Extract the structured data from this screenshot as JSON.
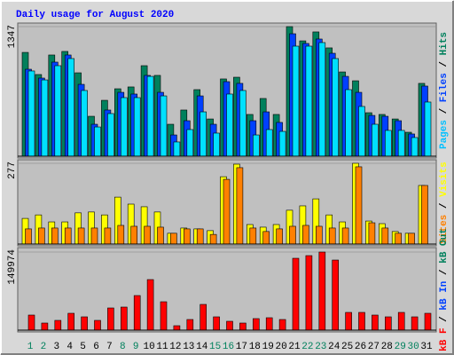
{
  "chart_data": [
    {
      "type": "bar",
      "title": "Daily usage for August 2020",
      "legend_separator": " / ",
      "ylim": [
        0,
        1347
      ],
      "yticks": [
        1347
      ],
      "grid": true,
      "series": [
        {
          "name": "Pages",
          "color": "#00e0ff",
          "label_color": "#00c0ff",
          "values": [
            886,
            793,
            941,
            1015,
            683,
            304,
            443,
            609,
            609,
            830,
            627,
            148,
            277,
            461,
            240,
            646,
            683,
            221,
            277,
            258,
            1144,
            1144,
            1181,
            1015,
            692,
            517,
            332,
            268,
            268,
            194,
            563
          ]
        },
        {
          "name": "Files",
          "color": "#0040ff",
          "label_color": "#0040ff",
          "values": [
            904,
            812,
            978,
            1052,
            747,
            332,
            480,
            664,
            646,
            840,
            664,
            221,
            369,
            627,
            332,
            775,
            757,
            369,
            461,
            351,
            1273,
            1172,
            1218,
            1070,
            830,
            664,
            424,
            415,
            369,
            231,
            729
          ]
        },
        {
          "name": "Hits",
          "color": "#00805c",
          "label_color": "#00805c",
          "values": [
            1079,
            849,
            1052,
            1089,
            867,
            415,
            581,
            701,
            720,
            941,
            840,
            332,
            480,
            692,
            387,
            803,
            821,
            434,
            600,
            434,
            1347,
            1199,
            1292,
            1126,
            876,
            784,
            452,
            434,
            387,
            249,
            757
          ]
        }
      ]
    },
    {
      "type": "bar",
      "legend_separator": " / ",
      "ylim": [
        0,
        277
      ],
      "yticks": [
        277
      ],
      "grid": true,
      "series": [
        {
          "name": "Sites",
          "color": "#ff8000",
          "label_color": "#ff8000",
          "values": [
            52,
            55,
            55,
            55,
            55,
            55,
            55,
            64,
            61,
            61,
            58,
            37,
            52,
            52,
            33,
            222,
            262,
            55,
            43,
            52,
            61,
            64,
            61,
            55,
            55,
            265,
            73,
            55,
            37,
            37,
            201
          ]
        },
        {
          "name": "Visits",
          "color": "#ffff00",
          "label_color": "#ffff00",
          "values": [
            88,
            100,
            76,
            76,
            107,
            110,
            100,
            161,
            137,
            128,
            110,
            37,
            55,
            52,
            46,
            231,
            274,
            67,
            58,
            67,
            116,
            131,
            155,
            100,
            76,
            277,
            79,
            70,
            43,
            37,
            201
          ]
        }
      ]
    },
    {
      "type": "bar",
      "legend_separator": " / ",
      "ylim": [
        0,
        149974
      ],
      "yticks": [
        149974
      ],
      "grid": true,
      "categories": [
        "1",
        "2",
        "3",
        "4",
        "5",
        "6",
        "7",
        "8",
        "9",
        "10",
        "11",
        "12",
        "13",
        "14",
        "15",
        "16",
        "17",
        "18",
        "19",
        "20",
        "21",
        "22",
        "23",
        "24",
        "25",
        "26",
        "27",
        "28",
        "29",
        "30",
        "31"
      ],
      "category_colors": [
        "#00805c",
        "#00805c",
        "#000000",
        "#000000",
        "#000000",
        "#000000",
        "#000000",
        "#00805c",
        "#00805c",
        "#000000",
        "#000000",
        "#000000",
        "#000000",
        "#000000",
        "#00805c",
        "#00805c",
        "#000000",
        "#000000",
        "#000000",
        "#000000",
        "#000000",
        "#00805c",
        "#00805c",
        "#000000",
        "#000000",
        "#000000",
        "#000000",
        "#000000",
        "#00805c",
        "#00805c",
        "#000000"
      ],
      "series": [
        {
          "name": "kB F",
          "color": "#ff0000",
          "label_color": "#ff0000",
          "values": [
            28970,
            13632,
            18745,
            32377,
            25561,
            18745,
            42602,
            44306,
            66458,
            97130,
            54530,
            8521,
            20449,
            49418,
            25561,
            17041,
            13632,
            22153,
            23857,
            20449,
            138027,
            143139,
            149974,
            134621,
            34082,
            34082,
            28970,
            25561,
            34082,
            25561,
            32377
          ]
        },
        {
          "name": "kB In",
          "color": "#0040ff",
          "label_color": "#0040ff",
          "values": [
            0,
            0,
            0,
            0,
            0,
            0,
            0,
            0,
            0,
            0,
            0,
            0,
            0,
            0,
            0,
            0,
            0,
            0,
            0,
            0,
            0,
            0,
            0,
            0,
            0,
            0,
            0,
            0,
            0,
            0,
            0
          ]
        },
        {
          "name": "kB Out",
          "color": "#00805c",
          "label_color": "#00805c",
          "values": [
            0,
            0,
            0,
            0,
            0,
            0,
            0,
            0,
            0,
            0,
            0,
            0,
            0,
            0,
            0,
            0,
            0,
            0,
            0,
            0,
            0,
            0,
            0,
            0,
            0,
            0,
            0,
            0,
            0,
            0,
            0
          ]
        }
      ]
    }
  ]
}
